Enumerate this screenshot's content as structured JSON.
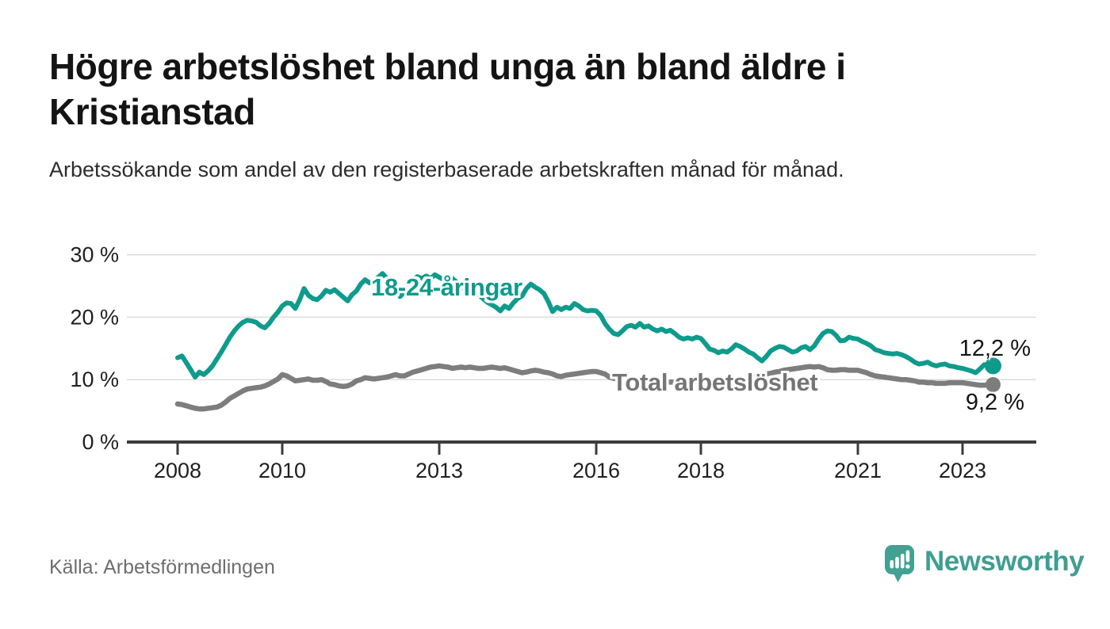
{
  "title": "Högre arbetslöshet bland unga än bland äldre i Kristianstad",
  "subtitle": "Arbetssökande som andel av den registerbaserade arbetskraften månad för månad.",
  "source": "Källa: Arbetsförmedlingen",
  "brand": {
    "name": "Newsworthy",
    "color": "#3f9e91",
    "icon": "bar-chart-speech-bubble-icon"
  },
  "colors": {
    "youth_line": "#0f9b8c",
    "total_line": "#7d7d7d",
    "grid": "#dcdcdc",
    "axis": "#3c3c3c",
    "tick_text": "#1f1f1f",
    "muted_text": "#6e6e6e"
  },
  "chart_data": {
    "type": "line",
    "unit": "%",
    "x_start": "2008-01",
    "x_step_months": 1,
    "x_ticks": [
      "2008",
      "2010",
      "2013",
      "2016",
      "2018",
      "2021",
      "2023"
    ],
    "y_ticks": [
      "0 %",
      "10 %",
      "20 %",
      "30 %"
    ],
    "y_tick_values": [
      0,
      10,
      20,
      30
    ],
    "y_range": [
      0,
      33
    ],
    "grid": true,
    "legend": "inline-labels",
    "series": [
      {
        "name": "18-24-åringar",
        "color": "#0f9b8c",
        "end_label": "12,2 %",
        "end_value": 12.2,
        "values": [
          13.5,
          13.8,
          12.7,
          11.6,
          10.4,
          11.2,
          10.8,
          11.4,
          12.2,
          13.3,
          14.4,
          15.6,
          16.8,
          17.8,
          18.6,
          19.2,
          19.5,
          19.4,
          19.2,
          18.6,
          18.3,
          19.0,
          20.0,
          20.8,
          21.8,
          22.3,
          22.2,
          21.4,
          22.8,
          24.6,
          23.5,
          23.0,
          22.8,
          23.4,
          24.3,
          24.0,
          24.4,
          23.8,
          23.2,
          22.6,
          23.6,
          24.2,
          25.3,
          26.0,
          25.5,
          25.8,
          26.4,
          27.0,
          26.2,
          25.4,
          24.6,
          23.3,
          24.0,
          25.2,
          26.0,
          26.5,
          26.2,
          26.6,
          26.2,
          26.8,
          26.4,
          26.0,
          26.5,
          26.2,
          25.6,
          25.0,
          24.4,
          24.8,
          24.2,
          23.6,
          23.0,
          22.4,
          22.0,
          21.6,
          21.0,
          21.8,
          21.4,
          22.3,
          23.0,
          23.4,
          24.6,
          25.3,
          24.8,
          24.4,
          23.8,
          22.5,
          20.9,
          21.6,
          21.2,
          21.6,
          21.4,
          22.2,
          21.8,
          21.2,
          21.0,
          21.1,
          21.0,
          20.3,
          19.0,
          18.1,
          17.4,
          17.2,
          17.8,
          18.5,
          18.7,
          18.4,
          19.0,
          18.4,
          18.6,
          18.1,
          17.8,
          18.1,
          17.7,
          17.9,
          17.4,
          16.8,
          16.5,
          16.7,
          16.5,
          16.8,
          16.6,
          15.8,
          14.9,
          14.7,
          14.3,
          14.6,
          14.4,
          14.9,
          15.6,
          15.3,
          14.9,
          14.4,
          14.1,
          13.5,
          13.0,
          13.7,
          14.6,
          15.0,
          15.3,
          15.2,
          14.8,
          14.4,
          14.6,
          15.1,
          15.3,
          14.8,
          15.4,
          16.5,
          17.4,
          17.8,
          17.7,
          17.1,
          16.2,
          16.3,
          16.8,
          16.6,
          16.5,
          16.1,
          15.8,
          15.4,
          14.8,
          14.6,
          14.3,
          14.2,
          14.1,
          14.2,
          14.0,
          13.7,
          13.3,
          12.8,
          12.5,
          12.6,
          12.8,
          12.4,
          12.2,
          12.4,
          12.5,
          12.2,
          12.1,
          11.9,
          11.8,
          11.6,
          11.4,
          11.1,
          11.7,
          12.4,
          12.3,
          12.2
        ]
      },
      {
        "name": "Total arbetslöshet",
        "color": "#7d7d7d",
        "end_label": "9,2 %",
        "end_value": 9.2,
        "values": [
          6.1,
          6.0,
          5.8,
          5.6,
          5.4,
          5.3,
          5.3,
          5.4,
          5.5,
          5.6,
          5.9,
          6.4,
          7.0,
          7.4,
          7.8,
          8.2,
          8.5,
          8.6,
          8.7,
          8.8,
          9.0,
          9.3,
          9.7,
          10.1,
          10.8,
          10.6,
          10.2,
          9.8,
          9.9,
          10.0,
          10.1,
          9.9,
          9.9,
          10.0,
          9.7,
          9.3,
          9.2,
          9.0,
          8.9,
          9.0,
          9.3,
          9.8,
          10.0,
          10.3,
          10.2,
          10.1,
          10.2,
          10.3,
          10.4,
          10.6,
          10.8,
          10.6,
          10.6,
          10.9,
          11.2,
          11.4,
          11.6,
          11.8,
          12.0,
          12.1,
          12.2,
          12.1,
          12.0,
          11.8,
          11.9,
          12.0,
          11.9,
          12.0,
          11.9,
          11.8,
          11.8,
          11.9,
          12.0,
          11.9,
          11.8,
          11.9,
          11.7,
          11.5,
          11.3,
          11.1,
          11.2,
          11.4,
          11.5,
          11.4,
          11.2,
          11.1,
          10.9,
          10.6,
          10.5,
          10.7,
          10.8,
          10.9,
          11.0,
          11.1,
          11.2,
          11.3,
          11.3,
          11.1,
          10.9,
          10.4,
          10.2,
          10.1,
          10.1,
          10.0,
          10.0,
          9.9,
          9.9,
          9.9,
          9.8,
          9.8,
          9.7,
          9.7,
          9.6,
          9.6,
          9.6,
          9.6,
          9.6,
          9.6,
          9.7,
          9.7,
          9.7,
          9.7,
          9.8,
          9.8,
          9.8,
          9.8,
          9.9,
          9.9,
          10.0,
          10.1,
          10.2,
          10.3,
          10.4,
          10.5,
          10.7,
          10.9,
          11.0,
          11.2,
          11.3,
          11.5,
          11.6,
          11.7,
          11.8,
          11.9,
          12.0,
          12.1,
          12.0,
          12.1,
          11.9,
          11.6,
          11.5,
          11.5,
          11.6,
          11.6,
          11.5,
          11.5,
          11.5,
          11.3,
          11.1,
          10.8,
          10.6,
          10.5,
          10.4,
          10.3,
          10.2,
          10.1,
          10.0,
          10.0,
          9.9,
          9.8,
          9.6,
          9.6,
          9.5,
          9.5,
          9.4,
          9.4,
          9.4,
          9.5,
          9.5,
          9.5,
          9.5,
          9.4,
          9.3,
          9.2,
          9.1,
          9.1,
          9.2,
          9.2
        ]
      }
    ]
  }
}
